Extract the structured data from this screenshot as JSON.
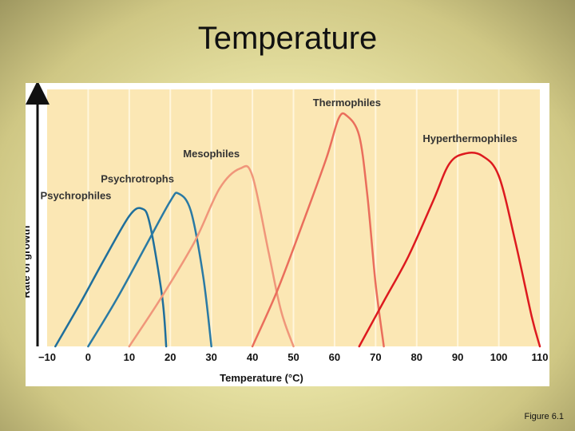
{
  "slide": {
    "title": "Temperature",
    "caption": "Figure 6.1"
  },
  "colors": {
    "panel": "#fbe7b4",
    "gridline": "#fff6dc",
    "psychrophiles": "#1f6f9c",
    "psychrotrophs": "#2a7aa4",
    "mesophiles": "#f0967a",
    "thermophiles": "#ea6e5c",
    "hyperthermophiles": "#dd1a1f",
    "text": "#111111"
  },
  "chart_data": {
    "type": "line",
    "title": "",
    "xlabel": "Temperature (°C)",
    "ylabel": "Rate of growth",
    "xlim": [
      -10,
      110
    ],
    "ylim": [
      0,
      100
    ],
    "xticks": [
      "−10",
      "0",
      "10",
      "20",
      "30",
      "40",
      "50",
      "60",
      "70",
      "80",
      "90",
      "100",
      "110"
    ],
    "xtick_values": [
      -10,
      0,
      10,
      20,
      30,
      40,
      50,
      60,
      70,
      80,
      90,
      100,
      110
    ],
    "grid": true,
    "series": [
      {
        "name": "Psychrophiles",
        "color": "#1f6f9c",
        "points": [
          [
            -8,
            0
          ],
          [
            -2,
            17
          ],
          [
            4,
            35
          ],
          [
            10,
            52
          ],
          [
            13,
            55
          ],
          [
            15,
            49
          ],
          [
            18,
            20
          ],
          [
            19,
            0
          ]
        ]
      },
      {
        "name": "Psychrotrophs",
        "color": "#2a7aa4",
        "points": [
          [
            0,
            0
          ],
          [
            7,
            19
          ],
          [
            14,
            40
          ],
          [
            20,
            58
          ],
          [
            22,
            61
          ],
          [
            25,
            54
          ],
          [
            28,
            28
          ],
          [
            30,
            0
          ]
        ]
      },
      {
        "name": "Mesophiles",
        "color": "#f0967a",
        "points": [
          [
            10,
            0
          ],
          [
            18,
            20
          ],
          [
            26,
            42
          ],
          [
            32,
            63
          ],
          [
            37,
            71
          ],
          [
            40,
            68
          ],
          [
            44,
            37
          ],
          [
            47,
            14
          ],
          [
            50,
            0
          ]
        ]
      },
      {
        "name": "Thermophiles",
        "color": "#ea6e5c",
        "points": [
          [
            40,
            0
          ],
          [
            46,
            22
          ],
          [
            52,
            48
          ],
          [
            58,
            75
          ],
          [
            61,
            91
          ],
          [
            63,
            92
          ],
          [
            66,
            84
          ],
          [
            68,
            60
          ],
          [
            70,
            25
          ],
          [
            72,
            0
          ]
        ]
      },
      {
        "name": "Hyperthermophiles",
        "color": "#dd1a1f",
        "points": [
          [
            66,
            0
          ],
          [
            72,
            18
          ],
          [
            78,
            36
          ],
          [
            84,
            58
          ],
          [
            88,
            73
          ],
          [
            92,
            77
          ],
          [
            96,
            76
          ],
          [
            100,
            68
          ],
          [
            104,
            42
          ],
          [
            108,
            12
          ],
          [
            110,
            0
          ]
        ]
      }
    ]
  }
}
